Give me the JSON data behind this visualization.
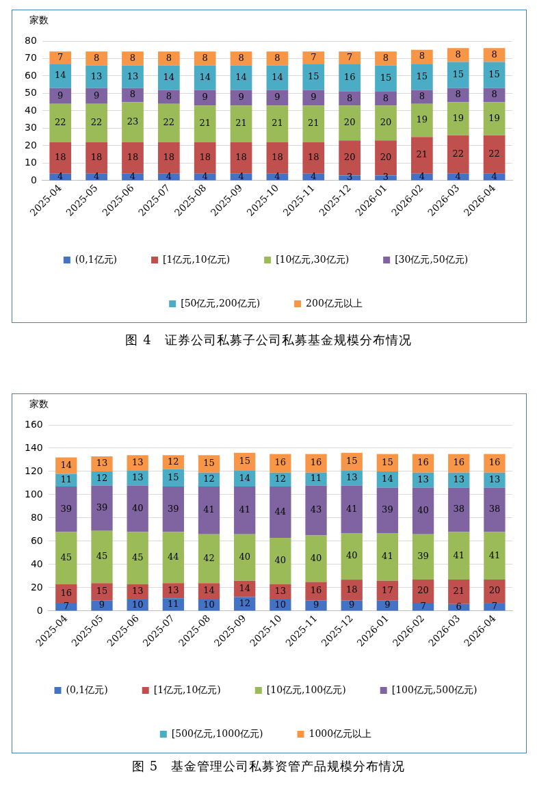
{
  "chart_data": [
    {
      "type": "bar",
      "title": "图 4　证券公司私募子公司私募基金规模分布情况",
      "ylabel": "家数",
      "stacked": true,
      "data_labels": true,
      "grid": "y",
      "legend": "bottom",
      "ylim": [
        0,
        80
      ],
      "yticks": [
        0,
        10,
        20,
        30,
        40,
        50,
        60,
        70,
        80
      ],
      "categories": [
        "2025-04",
        "2025-05",
        "2025-06",
        "2025-07",
        "2025-08",
        "2025-09",
        "2025-10",
        "2025-11",
        "2025-12",
        "2026-01",
        "2026-02",
        "2026-03",
        "2026-04"
      ],
      "series": [
        {
          "name": "(0,1亿元)",
          "color": "#4472c4",
          "values": [
            4,
            4,
            4,
            4,
            4,
            4,
            4,
            4,
            3,
            3,
            4,
            4,
            4
          ]
        },
        {
          "name": "[1亿元,10亿元)",
          "color": "#c0504d",
          "values": [
            18,
            18,
            18,
            18,
            18,
            18,
            18,
            18,
            20,
            20,
            21,
            22,
            22
          ]
        },
        {
          "name": "[10亿元,30亿元)",
          "color": "#9bbb59",
          "values": [
            22,
            22,
            23,
            22,
            21,
            21,
            21,
            21,
            20,
            20,
            19,
            19,
            19
          ]
        },
        {
          "name": "[30亿元,50亿元)",
          "color": "#8064a2",
          "values": [
            9,
            9,
            8,
            8,
            9,
            9,
            9,
            9,
            8,
            8,
            8,
            8,
            8
          ]
        },
        {
          "name": "[50亿元,200亿元)",
          "color": "#4bacc6",
          "values": [
            14,
            13,
            13,
            14,
            14,
            14,
            14,
            15,
            16,
            15,
            15,
            15,
            15
          ]
        },
        {
          "name": "200亿元以上",
          "color": "#f79646",
          "values": [
            7,
            8,
            8,
            8,
            8,
            8,
            8,
            7,
            7,
            8,
            8,
            8,
            8
          ]
        }
      ]
    },
    {
      "type": "bar",
      "title": "图 5　基金管理公司私募资管产品规模分布情况",
      "ylabel": "家数",
      "stacked": true,
      "data_labels": true,
      "grid": "y",
      "legend": "bottom",
      "ylim": [
        0,
        160
      ],
      "yticks": [
        0,
        20,
        40,
        60,
        80,
        100,
        120,
        140,
        160
      ],
      "categories": [
        "2025-04",
        "2025-05",
        "2025-06",
        "2025-07",
        "2025-08",
        "2025-09",
        "2025-10",
        "2025-11",
        "2025-12",
        "2026-01",
        "2026-02",
        "2026-03",
        "2026-04"
      ],
      "series": [
        {
          "name": "(0,1亿元)",
          "color": "#4472c4",
          "values": [
            7,
            9,
            10,
            11,
            10,
            12,
            10,
            9,
            9,
            9,
            7,
            6,
            7
          ]
        },
        {
          "name": "[1亿元,10亿元)",
          "color": "#c0504d",
          "values": [
            16,
            15,
            13,
            13,
            14,
            14,
            13,
            16,
            18,
            17,
            20,
            21,
            20
          ]
        },
        {
          "name": "[10亿元,100亿元)",
          "color": "#9bbb59",
          "values": [
            45,
            45,
            45,
            44,
            42,
            40,
            40,
            40,
            40,
            41,
            39,
            41,
            41
          ]
        },
        {
          "name": "[100亿元,500亿元)",
          "color": "#8064a2",
          "values": [
            39,
            39,
            40,
            39,
            41,
            41,
            44,
            43,
            41,
            39,
            40,
            38,
            38
          ]
        },
        {
          "name": "[500亿元,1000亿元)",
          "color": "#4bacc6",
          "values": [
            11,
            12,
            13,
            15,
            12,
            14,
            12,
            11,
            13,
            14,
            13,
            13,
            13
          ]
        },
        {
          "name": "1000亿元以上",
          "color": "#f79646",
          "values": [
            14,
            13,
            13,
            12,
            15,
            15,
            16,
            16,
            15,
            15,
            16,
            16,
            16
          ]
        }
      ]
    }
  ]
}
